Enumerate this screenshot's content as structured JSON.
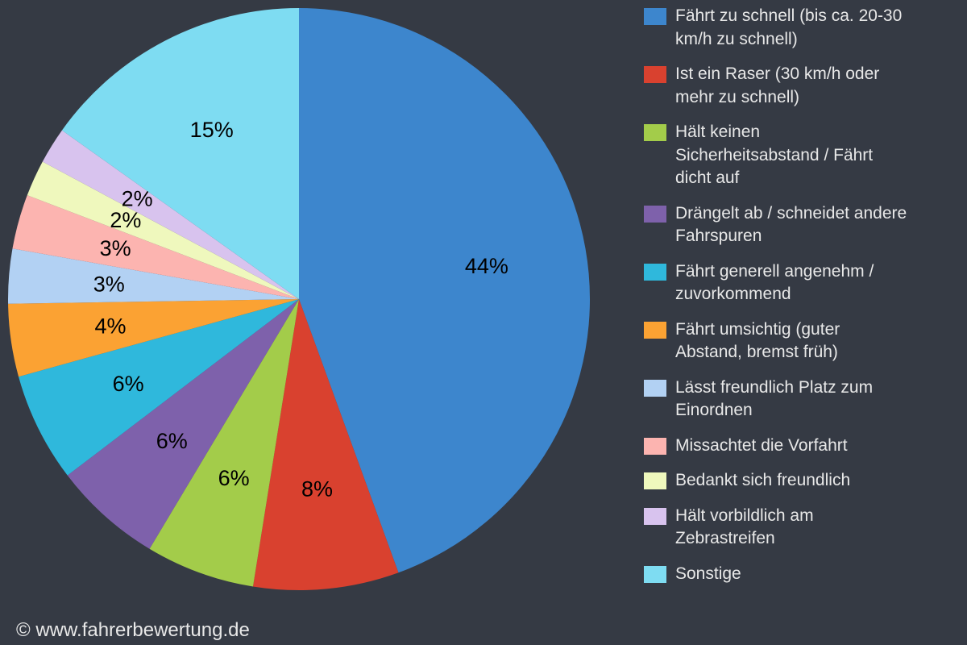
{
  "colors": {
    "background": "#353a44",
    "legend_text": "#e8e8e8",
    "percent_label": "#000000",
    "footer_text": "#e8e8e8"
  },
  "footer": {
    "watermark": "© www.fahrerbewertung.de"
  },
  "chart_data": {
    "type": "pie",
    "unit": "%",
    "title": "",
    "legend_position": "right",
    "start_angle_deg": 0,
    "direction": "clockwise",
    "slices": [
      {
        "label": "Fährt zu schnell (bis ca. 20-30 km/h zu schnell)",
        "lines": [
          "Fährt zu schnell (bis ca. 20-30",
          "km/h zu schnell)"
        ],
        "value": 44,
        "percent_label": "44%",
        "color": "#3d86cd"
      },
      {
        "label": "Ist ein Raser (30 km/h oder mehr zu schnell)",
        "lines": [
          "Ist ein Raser (30 km/h oder",
          "mehr zu schnell)"
        ],
        "value": 8,
        "percent_label": "8%",
        "color": "#d9412f"
      },
      {
        "label": "Hält keinen Sicherheitsabstand / Fährt dicht auf",
        "lines": [
          "Hält keinen",
          "Sicherheitsabstand / Fährt",
          "dicht auf"
        ],
        "value": 6,
        "percent_label": "6%",
        "color": "#a3cc4a"
      },
      {
        "label": "Drängelt ab / schneidet andere Fahrspuren",
        "lines": [
          "Drängelt ab / schneidet andere",
          "Fahrspuren"
        ],
        "value": 6,
        "percent_label": "6%",
        "color": "#7e61ab"
      },
      {
        "label": "Fährt generell angenehm / zuvorkommend",
        "lines": [
          "Fährt generell angenehm /",
          "zuvorkommend"
        ],
        "value": 6,
        "percent_label": "6%",
        "color": "#2fb8dc"
      },
      {
        "label": "Fährt umsichtig (guter Abstand, bremst früh)",
        "lines": [
          "Fährt umsichtig (guter",
          "Abstand, bremst früh)"
        ],
        "value": 4,
        "percent_label": "4%",
        "color": "#fba233"
      },
      {
        "label": "Lässt freundlich Platz zum Einordnen",
        "lines": [
          "Lässt freundlich Platz zum",
          "Einordnen"
        ],
        "value": 3,
        "percent_label": "3%",
        "color": "#b2d1f3"
      },
      {
        "label": "Missachtet die Vorfahrt",
        "lines": [
          "Missachtet die Vorfahrt"
        ],
        "value": 3,
        "percent_label": "3%",
        "color": "#fcb4b0"
      },
      {
        "label": "Bedankt sich freundlich",
        "lines": [
          "Bedankt sich freundlich"
        ],
        "value": 2,
        "percent_label": "2%",
        "color": "#eff8bd"
      },
      {
        "label": "Hält vorbildlich am Zebrastreifen",
        "lines": [
          "Hält vorbildlich am",
          "Zebrastreifen"
        ],
        "value": 2,
        "percent_label": "2%",
        "color": "#d8c3ee"
      },
      {
        "label": "Sonstige",
        "lines": [
          "Sonstige"
        ],
        "value": 15,
        "percent_label": "15%",
        "color": "#7edcf2"
      }
    ]
  }
}
